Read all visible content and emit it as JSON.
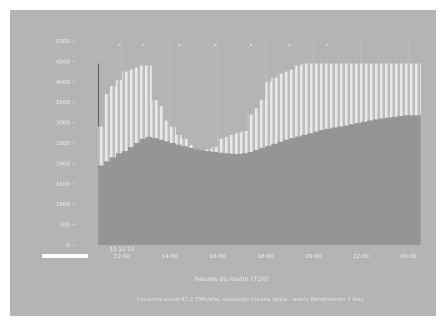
{
  "chart_data": {
    "type": "area",
    "title": "",
    "xlabel": "heures du matin (TUV)",
    "ylabel": "",
    "ylim": [
      0,
      5000
    ],
    "yticks": [
      0,
      500,
      1000,
      1500,
      2000,
      2500,
      3000,
      3500,
      4000,
      4500,
      5000
    ],
    "xticks": [
      "12:00",
      "14:00",
      "16:00",
      "18:00",
      "20:00",
      "22:00",
      "00:00"
    ],
    "x_top_tick_count": 7,
    "x_range": [
      11,
      24.3
    ],
    "series": [
      {
        "name": "",
        "color": "#a4a4a4",
        "style": "striped",
        "x": [
          11.0,
          11.25,
          11.5,
          11.75,
          12.0,
          12.25,
          12.5,
          12.75,
          13.0,
          13.25,
          13.5,
          13.75,
          14.0,
          14.25,
          14.5,
          14.75,
          15.0,
          15.25,
          15.5,
          15.75,
          16.0,
          16.25,
          16.5,
          16.75,
          17.0,
          17.25,
          17.5,
          17.75,
          18.0,
          18.25,
          18.5,
          18.75,
          19.0,
          19.25,
          19.5,
          19.75,
          20.0,
          20.25,
          20.5,
          20.75,
          21.0,
          21.25,
          21.5,
          21.75,
          22.0,
          22.25,
          22.5,
          22.75,
          23.0,
          23.25,
          23.5,
          23.75,
          24.0,
          24.25
        ],
        "values": [
          2900,
          3700,
          3900,
          4050,
          4250,
          4300,
          4350,
          4400,
          4400,
          3550,
          3400,
          3050,
          2900,
          2700,
          2600,
          2450,
          2350,
          2300,
          2350,
          2400,
          2600,
          2650,
          2700,
          2750,
          2800,
          3200,
          3350,
          3550,
          4000,
          4100,
          4200,
          4250,
          4300,
          4400,
          4450,
          4450,
          4450,
          4450,
          4450,
          4450,
          4450,
          4450,
          4450,
          4450,
          4450,
          4450,
          4450,
          4450,
          4450,
          4450,
          4450,
          4450,
          4450,
          4450
        ]
      },
      {
        "name": "",
        "color": "#959595",
        "style": "solid",
        "x": [
          11.0,
          11.25,
          11.5,
          11.75,
          12.0,
          12.25,
          12.5,
          12.75,
          13.0,
          13.25,
          13.5,
          13.75,
          14.0,
          14.25,
          14.5,
          14.75,
          15.0,
          15.25,
          15.5,
          15.75,
          16.0,
          16.25,
          16.5,
          16.75,
          17.0,
          17.25,
          17.5,
          17.75,
          18.0,
          18.25,
          18.5,
          18.75,
          19.0,
          19.25,
          19.5,
          19.75,
          20.0,
          20.25,
          20.5,
          20.75,
          21.0,
          21.25,
          21.5,
          21.75,
          22.0,
          22.25,
          22.5,
          22.75,
          23.0,
          23.25,
          23.5,
          23.75,
          24.0,
          24.25
        ],
        "values": [
          1950,
          2050,
          2150,
          2250,
          2300,
          2400,
          2500,
          2600,
          2650,
          2620,
          2580,
          2540,
          2500,
          2460,
          2420,
          2380,
          2350,
          2320,
          2300,
          2280,
          2260,
          2250,
          2240,
          2230,
          2250,
          2280,
          2330,
          2380,
          2430,
          2480,
          2530,
          2580,
          2620,
          2660,
          2700,
          2740,
          2780,
          2820,
          2850,
          2880,
          2900,
          2930,
          2960,
          2990,
          3020,
          3050,
          3080,
          3100,
          3120,
          3140,
          3160,
          3180,
          3180,
          3180
        ]
      }
    ],
    "x_sub_labels": [
      "11 12 13",
      "12:00"
    ],
    "caption": "Consumo anual 47.2 TWh/año, evolución horaria típica - enero     Rendimiento 7 días",
    "legend_swatch_color": "#ffffff",
    "grid": true
  }
}
